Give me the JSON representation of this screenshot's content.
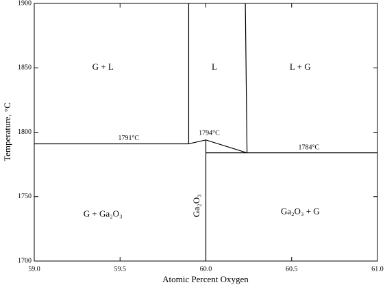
{
  "chart_data": {
    "type": "line",
    "xlabel": "Atomic Percent Oxygen",
    "ylabel": "Temperature, °C",
    "xlim": [
      59.0,
      61.0
    ],
    "ylim": [
      1700,
      1900
    ],
    "xticks": [
      {
        "value": 59.0,
        "label": "59.0"
      },
      {
        "value": 59.5,
        "label": "59.5"
      },
      {
        "value": 60.0,
        "label": "60.0"
      },
      {
        "value": 60.5,
        "label": "60.5"
      },
      {
        "value": 61.0,
        "label": "61.0"
      }
    ],
    "yticks": [
      1700,
      1750,
      1800,
      1850,
      1900
    ],
    "series": [
      {
        "color": "#000000",
        "x": [
          59.0,
          59.9
        ],
        "values": [
          1791,
          1791
        ]
      },
      {
        "color": "#000000",
        "x": [
          59.9,
          59.9
        ],
        "values": [
          1791,
          1900
        ]
      },
      {
        "color": "#000000",
        "x": [
          60.24,
          60.23
        ],
        "values": [
          1784,
          1900
        ]
      },
      {
        "color": "#000000",
        "x": [
          59.9,
          60.0,
          60.24
        ],
        "values": [
          1791,
          1794,
          1784
        ]
      },
      {
        "color": "#000000",
        "x": [
          60.0,
          61.0
        ],
        "values": [
          1784,
          1784
        ]
      },
      {
        "color": "#000000",
        "x": [
          60.0,
          60.0
        ],
        "values": [
          1794,
          1700
        ]
      }
    ],
    "annotations": [
      "G + L",
      "L",
      "L + G",
      "1791°C",
      "1794°C",
      "1784°C",
      "G + Ga₂O₃",
      "Ga₂O₃",
      "Ga₂O₃ + G"
    ]
  }
}
